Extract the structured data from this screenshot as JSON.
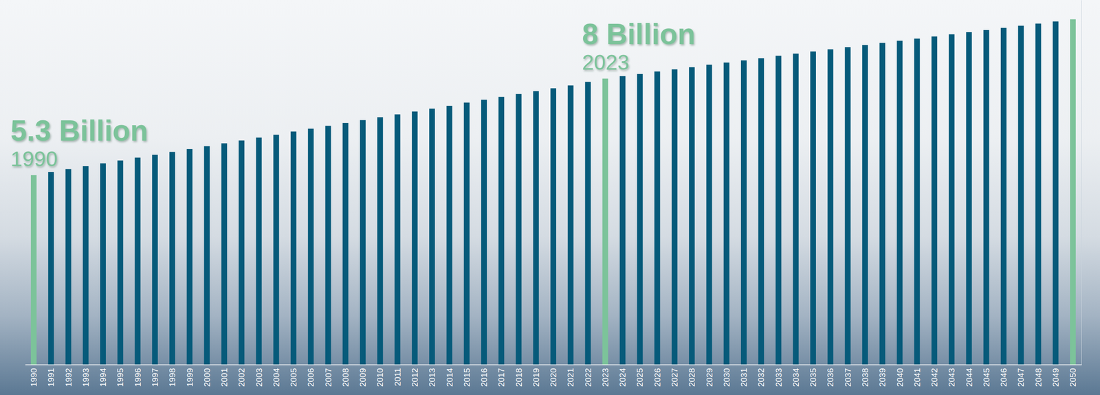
{
  "chart_data": {
    "type": "bar",
    "categories": [
      "1990",
      "1991",
      "1992",
      "1993",
      "1994",
      "1995",
      "1996",
      "1997",
      "1998",
      "1999",
      "2000",
      "2001",
      "2002",
      "2003",
      "2004",
      "2005",
      "2006",
      "2007",
      "2008",
      "2009",
      "2010",
      "2011",
      "2012",
      "2013",
      "2014",
      "2015",
      "2016",
      "2017",
      "2018",
      "2019",
      "2020",
      "2021",
      "2022",
      "2023",
      "2024",
      "2025",
      "2026",
      "2027",
      "2028",
      "2029",
      "2030",
      "2031",
      "2032",
      "2033",
      "2034",
      "2035",
      "2036",
      "2037",
      "2038",
      "2039",
      "2040",
      "2041",
      "2042",
      "2043",
      "2044",
      "2045",
      "2046",
      "2047",
      "2048",
      "2049",
      "2050"
    ],
    "values": [
      5.3,
      5.39,
      5.47,
      5.55,
      5.63,
      5.71,
      5.79,
      5.87,
      5.95,
      6.03,
      6.11,
      6.19,
      6.27,
      6.35,
      6.43,
      6.52,
      6.6,
      6.68,
      6.76,
      6.84,
      6.92,
      7.0,
      7.08,
      7.16,
      7.24,
      7.33,
      7.41,
      7.49,
      7.57,
      7.65,
      7.73,
      7.81,
      7.91,
      8.0,
      8.07,
      8.13,
      8.2,
      8.26,
      8.32,
      8.39,
      8.45,
      8.51,
      8.57,
      8.64,
      8.7,
      8.76,
      8.82,
      8.88,
      8.94,
      9.0,
      9.06,
      9.12,
      9.18,
      9.24,
      9.3,
      9.36,
      9.42,
      9.48,
      9.54,
      9.6,
      9.66
    ],
    "colors": [
      "#7cc39a",
      "#065a7a",
      "#065a7a",
      "#065a7a",
      "#065a7a",
      "#065a7a",
      "#065a7a",
      "#065a7a",
      "#065a7a",
      "#065a7a",
      "#065a7a",
      "#065a7a",
      "#065a7a",
      "#065a7a",
      "#065a7a",
      "#065a7a",
      "#065a7a",
      "#065a7a",
      "#065a7a",
      "#065a7a",
      "#065a7a",
      "#065a7a",
      "#065a7a",
      "#065a7a",
      "#065a7a",
      "#065a7a",
      "#065a7a",
      "#065a7a",
      "#065a7a",
      "#065a7a",
      "#065a7a",
      "#065a7a",
      "#065a7a",
      "#7cc39a",
      "#065a7a",
      "#065a7a",
      "#065a7a",
      "#065a7a",
      "#065a7a",
      "#065a7a",
      "#065a7a",
      "#065a7a",
      "#065a7a",
      "#065a7a",
      "#065a7a",
      "#065a7a",
      "#065a7a",
      "#065a7a",
      "#065a7a",
      "#065a7a",
      "#065a7a",
      "#065a7a",
      "#065a7a",
      "#065a7a",
      "#065a7a",
      "#065a7a",
      "#065a7a",
      "#065a7a",
      "#065a7a",
      "#065a7a",
      "#7cc39a"
    ],
    "ylim": [
      0,
      10.2
    ],
    "tick_labels": "x",
    "annotations": [
      {
        "text": "5.3 Billion",
        "subtext": "1990",
        "x": "1990"
      },
      {
        "text": "8 Billion",
        "subtext": "2023",
        "x": "2023"
      }
    ]
  }
}
